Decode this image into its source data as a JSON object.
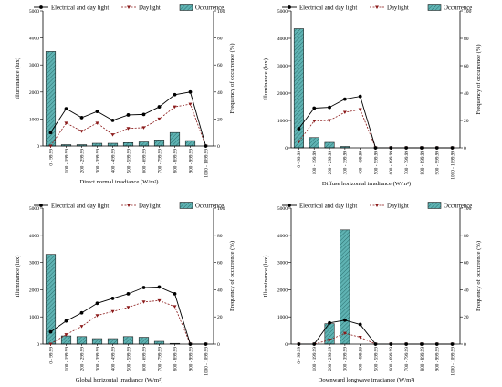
{
  "figure": {
    "legend": {
      "electrical_label": "Electrical and day light",
      "daylight_label": "Daylight",
      "occurrence_label": "Occurrence"
    },
    "colors": {
      "electrical": "#000000",
      "daylight": "#8b1a1a",
      "occurrence_fill": "#5fb3b3",
      "occurrence_stroke": "#222222"
    },
    "hatch": "diagonal"
  },
  "chart_data": [
    {
      "type": "bar",
      "xlabel": "Direct normal irradiance (W/m²)",
      "ylabel": "Illuminance (lux)",
      "y2label": "Frequency of occurrence (%)",
      "ylim": [
        0,
        5000
      ],
      "yticks": [
        0,
        1000,
        2000,
        3000,
        4000,
        5000
      ],
      "y2lim": [
        0,
        100
      ],
      "y2ticks": [
        0,
        20,
        40,
        60,
        80,
        100
      ],
      "grid": false,
      "legend_position": "top",
      "categories": [
        "0 - 99.99",
        "100 - 199.99",
        "200 - 299.99",
        "300 - 399.99",
        "400 - 499.99",
        "500 - 599.99",
        "600 - 699.99",
        "700 - 799.99",
        "800 - 899.99",
        "900 - 999.99",
        "1000 - 1099.99"
      ],
      "series": [
        {
          "name": "Electrical and day light",
          "kind": "line",
          "axis": "left",
          "values": [
            500,
            1380,
            1050,
            1280,
            950,
            1150,
            1170,
            1450,
            1900,
            2000,
            0
          ]
        },
        {
          "name": "Daylight",
          "kind": "dashed-line",
          "axis": "left",
          "values": [
            0,
            850,
            550,
            850,
            420,
            650,
            680,
            1000,
            1450,
            1550,
            0
          ]
        },
        {
          "name": "Occurrence",
          "kind": "bar",
          "axis": "right",
          "values": [
            70,
            1,
            1,
            2,
            2,
            2.5,
            3,
            4.5,
            10,
            4,
            0
          ]
        }
      ]
    },
    {
      "type": "bar",
      "xlabel": "Diffuse horizontal irradiance (W/m²)",
      "ylabel": "Illuminance (lux)",
      "y2label": "Frequency of occurrence (%)",
      "ylim": [
        0,
        5000
      ],
      "yticks": [
        0,
        1000,
        2000,
        3000,
        4000,
        5000
      ],
      "y2lim": [
        0,
        100
      ],
      "y2ticks": [
        0,
        20,
        40,
        60,
        80,
        100
      ],
      "grid": false,
      "legend_position": "top",
      "categories": [
        "0 - 99.99",
        "100 - 199.99",
        "200 - 299.99",
        "300 - 399.99",
        "400 - 499.99",
        "500 - 599.99",
        "600 - 699.99",
        "700 - 799.99",
        "800 - 899.99",
        "900 - 999.99",
        "1000 - 1099.99"
      ],
      "series": [
        {
          "name": "Electrical and day light",
          "kind": "line",
          "axis": "left",
          "values": [
            700,
            1450,
            1480,
            1780,
            1880,
            0,
            0,
            0,
            0,
            0,
            0
          ]
        },
        {
          "name": "Daylight",
          "kind": "dashed-line",
          "axis": "left",
          "values": [
            230,
            980,
            1000,
            1300,
            1400,
            0,
            0,
            0,
            0,
            0,
            0
          ]
        },
        {
          "name": "Occurrence",
          "kind": "bar",
          "axis": "right",
          "values": [
            87,
            7.5,
            4,
            1,
            0,
            0,
            0,
            0,
            0,
            0,
            0
          ]
        }
      ]
    },
    {
      "type": "bar",
      "xlabel": "Global horizontal irradiance (W/m²)",
      "ylabel": "Illuminance (lux)",
      "y2label": "Frequency of occurrence (%)",
      "ylim": [
        0,
        5000
      ],
      "yticks": [
        0,
        1000,
        2000,
        3000,
        4000,
        5000
      ],
      "y2lim": [
        0,
        100
      ],
      "y2ticks": [
        0,
        20,
        40,
        60,
        80,
        100
      ],
      "grid": false,
      "legend_position": "top",
      "categories": [
        "0 - 99.99",
        "100 - 199.99",
        "200 - 299.99",
        "300 - 399.99",
        "400 - 499.99",
        "500 - 599.99",
        "600 - 699.99",
        "700 - 799.99",
        "800 - 899.99",
        "900 - 999.99",
        "1000 - 1099.99"
      ],
      "series": [
        {
          "name": "Electrical and day light",
          "kind": "line",
          "axis": "left",
          "values": [
            450,
            850,
            1150,
            1500,
            1680,
            1850,
            2080,
            2100,
            1850,
            0,
            0
          ]
        },
        {
          "name": "Daylight",
          "kind": "dashed-line",
          "axis": "left",
          "values": [
            0,
            350,
            650,
            1050,
            1200,
            1350,
            1550,
            1600,
            1380,
            0,
            0
          ]
        },
        {
          "name": "Occurrence",
          "kind": "bar",
          "axis": "right",
          "values": [
            66,
            6,
            5.5,
            4,
            4,
            5.5,
            5,
            2,
            0.5,
            0,
            0
          ]
        }
      ]
    },
    {
      "type": "bar",
      "xlabel": "Downward longwave irradiance (W/m²)",
      "ylabel": "Illuminance (lux)",
      "y2label": "Frequency of occurrence (%)",
      "ylim": [
        0,
        5000
      ],
      "yticks": [
        0,
        1000,
        2000,
        3000,
        4000,
        5000
      ],
      "y2lim": [
        0,
        100
      ],
      "y2ticks": [
        0,
        20,
        40,
        60,
        80,
        100
      ],
      "grid": false,
      "legend_position": "top",
      "categories": [
        "0 - 99.99",
        "100 - 199.99",
        "200 - 299.99",
        "300 - 399.99",
        "400 - 499.99",
        "500 - 599.99",
        "600 - 699.99",
        "700 - 799.99",
        "800 - 899.99",
        "900 - 999.99",
        "1000 - 1099.99"
      ],
      "series": [
        {
          "name": "Electrical and day light",
          "kind": "line",
          "axis": "left",
          "values": [
            0,
            0,
            780,
            880,
            720,
            0,
            0,
            0,
            0,
            0,
            0
          ]
        },
        {
          "name": "Daylight",
          "kind": "dashed-line",
          "axis": "left",
          "values": [
            0,
            0,
            150,
            400,
            250,
            0,
            0,
            0,
            0,
            0,
            0
          ]
        },
        {
          "name": "Occurrence",
          "kind": "bar",
          "axis": "right",
          "values": [
            0,
            0,
            15,
            84,
            0,
            0,
            0,
            0,
            0,
            0,
            0
          ]
        }
      ]
    }
  ]
}
